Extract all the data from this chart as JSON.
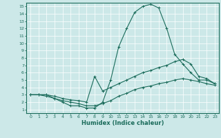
{
  "title": "",
  "xlabel": "Humidex (Indice chaleur)",
  "ylabel": "",
  "xlim": [
    -0.5,
    23.5
  ],
  "ylim": [
    0.5,
    15.5
  ],
  "xticks": [
    0,
    1,
    2,
    3,
    4,
    5,
    6,
    7,
    8,
    9,
    10,
    11,
    12,
    13,
    14,
    15,
    16,
    17,
    18,
    19,
    20,
    21,
    22,
    23
  ],
  "yticks": [
    1,
    2,
    3,
    4,
    5,
    6,
    7,
    8,
    9,
    10,
    11,
    12,
    13,
    14,
    15
  ],
  "bg_color": "#cce8e8",
  "line_color": "#1a6b5a",
  "grid_color": "#ffffff",
  "curves": [
    {
      "x": [
        0,
        1,
        2,
        3,
        4,
        5,
        6,
        7,
        8,
        9,
        10,
        11,
        12,
        13,
        14,
        15,
        16,
        17,
        18,
        19,
        20,
        21,
        22,
        23
      ],
      "y": [
        3.0,
        3.0,
        3.0,
        2.5,
        2.0,
        1.5,
        1.5,
        1.2,
        1.2,
        2.0,
        5.0,
        9.5,
        12.0,
        14.2,
        15.0,
        15.3,
        14.8,
        12.0,
        8.5,
        7.2,
        6.0,
        5.0,
        5.0,
        4.5
      ]
    },
    {
      "x": [
        0,
        1,
        2,
        3,
        4,
        5,
        6,
        7,
        8,
        9,
        10,
        11,
        12,
        13,
        14,
        15,
        16,
        17,
        18,
        19,
        20,
        21,
        22,
        23
      ],
      "y": [
        3.0,
        3.0,
        3.0,
        2.8,
        2.5,
        2.3,
        2.2,
        2.0,
        5.5,
        3.5,
        4.0,
        4.5,
        5.0,
        5.5,
        6.0,
        6.3,
        6.7,
        7.0,
        7.5,
        7.8,
        7.2,
        5.5,
        5.2,
        4.5
      ]
    },
    {
      "x": [
        0,
        1,
        2,
        3,
        4,
        5,
        6,
        7,
        8,
        9,
        10,
        11,
        12,
        13,
        14,
        15,
        16,
        17,
        18,
        19,
        20,
        21,
        22,
        23
      ],
      "y": [
        3.0,
        3.0,
        2.8,
        2.5,
        2.2,
        2.0,
        1.8,
        1.5,
        1.5,
        1.8,
        2.2,
        2.8,
        3.2,
        3.7,
        4.0,
        4.2,
        4.5,
        4.7,
        5.0,
        5.2,
        5.0,
        4.8,
        4.5,
        4.3
      ]
    }
  ]
}
